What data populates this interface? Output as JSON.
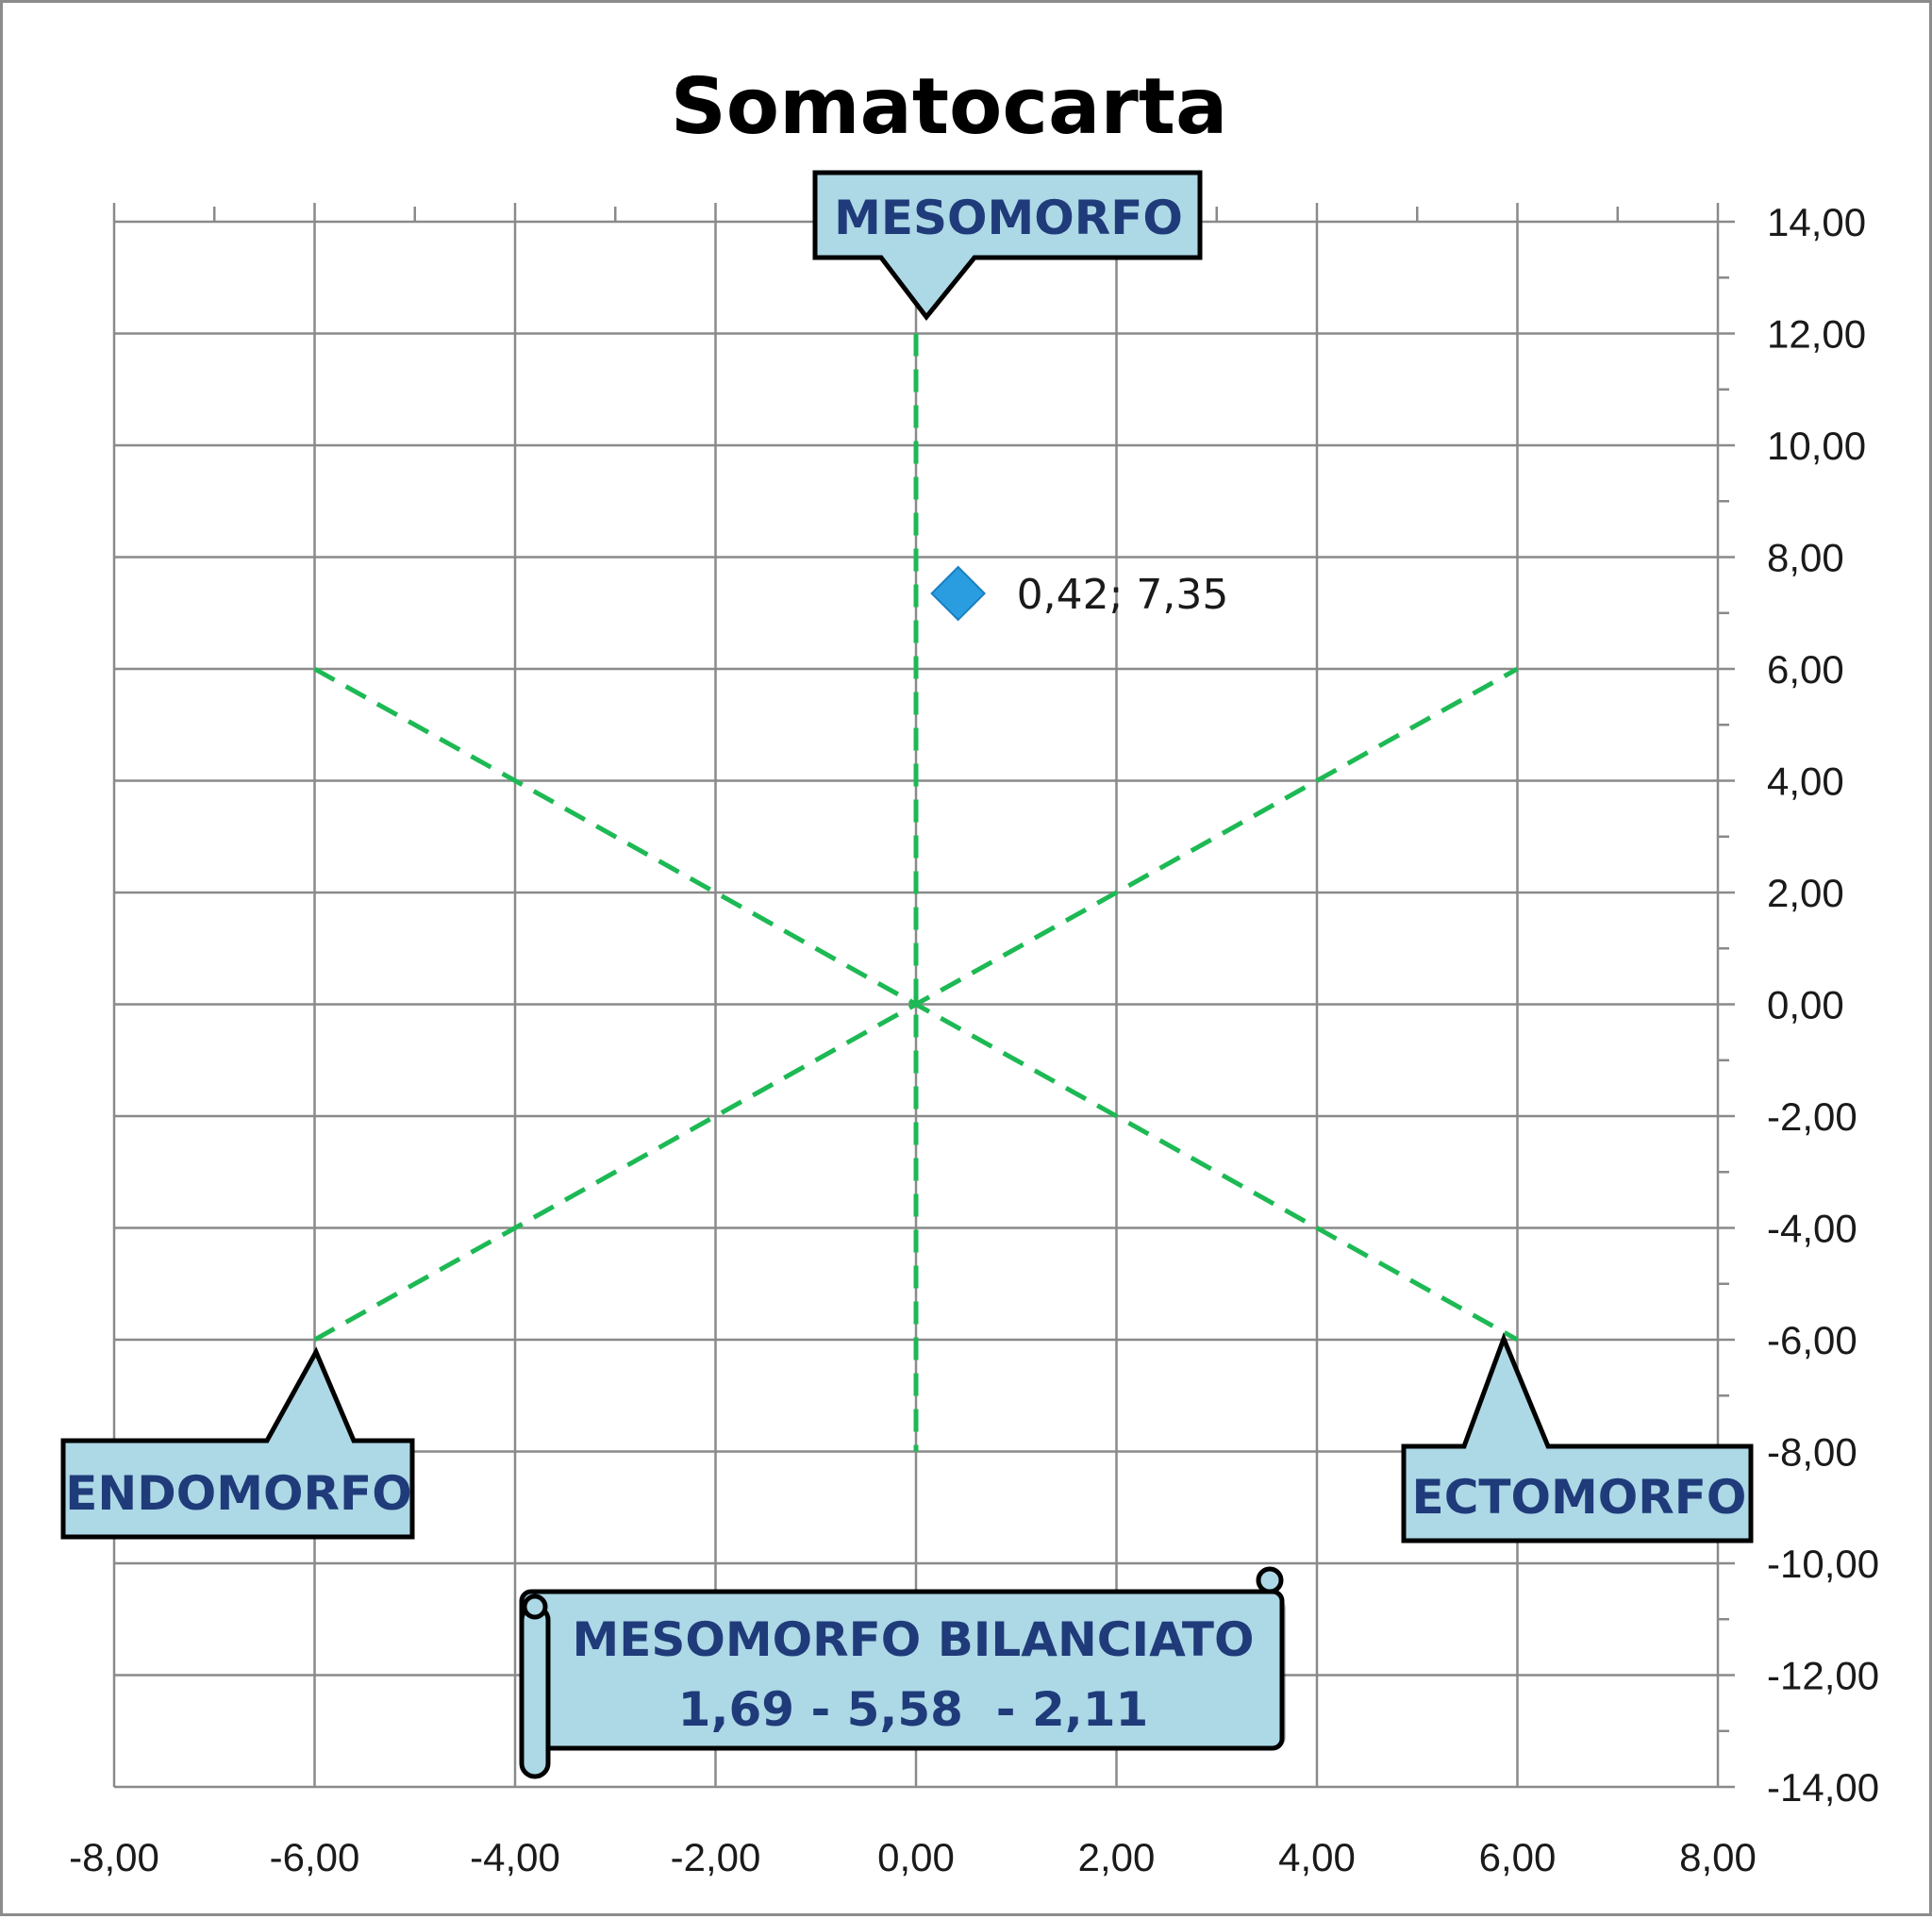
{
  "chart_data": {
    "type": "scatter",
    "title": "Somatocarta",
    "xlim": [
      -8,
      8
    ],
    "ylim": [
      -14,
      14
    ],
    "x_ticks": [
      "-8,00",
      "-6,00",
      "-4,00",
      "-2,00",
      "0,00",
      "2,00",
      "4,00",
      "6,00",
      "8,00"
    ],
    "y_ticks": [
      "14,00",
      "12,00",
      "10,00",
      "8,00",
      "6,00",
      "4,00",
      "2,00",
      "0,00",
      "-2,00",
      "-4,00",
      "-6,00",
      "-8,00",
      "-10,00",
      "-12,00",
      "-14,00"
    ],
    "grid": true,
    "y_axis_side": "right",
    "reference_lines": [
      {
        "from": [
          0,
          12
        ],
        "to": [
          0,
          -8
        ]
      },
      {
        "from": [
          -6,
          6
        ],
        "to": [
          6,
          -6
        ]
      },
      {
        "from": [
          -6,
          -6
        ],
        "to": [
          6,
          6
        ]
      }
    ],
    "line_color": "#1db954",
    "series": [
      {
        "points": [
          {
            "x": 0.42,
            "y": 7.35,
            "label": "0,42; 7,35"
          }
        ],
        "color": "#2a9de0"
      }
    ],
    "annotations": {
      "mesomorfo": "MESOMORFO",
      "endomorfo": "ENDOMORFO",
      "ectomorfo": "ECTOMORFO",
      "result_line1": "MESOMORFO BILANCIATO",
      "result_line2": "1,69 - 5,58  - 2,11"
    },
    "callout_fill": "#add8e6"
  }
}
